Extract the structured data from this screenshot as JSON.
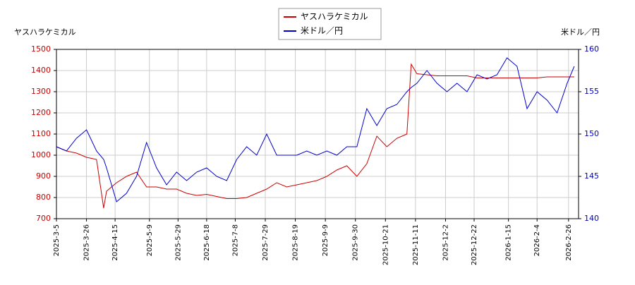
{
  "chart_data": {
    "type": "line",
    "y_label": "ヤスハラケミカル",
    "y2_label": "米ドル／円",
    "x": [
      "2025-3-5",
      "2025-3-12",
      "2025-3-19",
      "2025-3-26",
      "2025-4-2",
      "2025-4-7",
      "2025-4-9",
      "2025-4-16",
      "2025-4-23",
      "2025-4-30",
      "2025-5-7",
      "2025-5-14",
      "2025-5-21",
      "2025-5-28",
      "2025-6-4",
      "2025-6-11",
      "2025-6-18",
      "2025-6-25",
      "2025-7-2",
      "2025-7-9",
      "2025-7-16",
      "2025-7-23",
      "2025-7-30",
      "2025-8-6",
      "2025-8-13",
      "2025-8-20",
      "2025-8-27",
      "2025-9-3",
      "2025-9-10",
      "2025-9-17",
      "2025-9-24",
      "2025-10-1",
      "2025-10-8",
      "2025-10-15",
      "2025-10-22",
      "2025-10-29",
      "2025-11-5",
      "2025-11-8",
      "2025-11-12",
      "2025-11-19",
      "2025-11-26",
      "2025-12-3",
      "2025-12-10",
      "2025-12-17",
      "2025-12-24",
      "2025-12-31",
      "2026-1-7",
      "2026-1-14",
      "2026-1-21",
      "2026-1-28",
      "2026-2-4",
      "2026-2-11",
      "2026-2-18",
      "2026-2-25",
      "2026-3-2"
    ],
    "series": [
      {
        "name": "ヤスハラケミカル",
        "color": "#cc0000",
        "values": [
          1040,
          1020,
          1010,
          990,
          980,
          750,
          830,
          870,
          900,
          920,
          850,
          850,
          840,
          840,
          820,
          810,
          815,
          805,
          795,
          795,
          800,
          820,
          840,
          870,
          850,
          860,
          870,
          880,
          900,
          930,
          950,
          900,
          960,
          1090,
          1040,
          1080,
          1100,
          1430,
          1385,
          1380,
          1375,
          1375,
          1375,
          1375,
          1365,
          1365,
          1365,
          1365,
          1365,
          1365,
          1365,
          1370,
          1370,
          1370,
          1370
        ]
      },
      {
        "name": "米ドル／円",
        "color": "#0000cc",
        "axis": "y2",
        "values": [
          148.5,
          148,
          149.5,
          150.5,
          148,
          147,
          146,
          142,
          143,
          145,
          149,
          146,
          144,
          145.5,
          144.5,
          145.5,
          146,
          145,
          144.5,
          147,
          148.5,
          147.5,
          150,
          147.5,
          147.5,
          147.5,
          148,
          147.5,
          148,
          147.5,
          148.5,
          148.5,
          153,
          151,
          153,
          153.5,
          155,
          155.5,
          156,
          157.5,
          156,
          155,
          156,
          155,
          157,
          156.5,
          157,
          159,
          158,
          153,
          155,
          154,
          152.5,
          156,
          158
        ]
      }
    ],
    "xlim": [
      "2025-3-5",
      "2026-3-5"
    ],
    "xticks": [
      "2025-3-5",
      "2025-3-26",
      "2025-4-15",
      "2025-5-9",
      "2025-5-29",
      "2025-6-18",
      "2025-7-8",
      "2025-7-29",
      "2025-8-19",
      "2025-9-9",
      "2025-9-30",
      "2025-10-21",
      "2025-11-11",
      "2025-12-2",
      "2025-12-22",
      "2026-1-15",
      "2026-2-4",
      "2026-2-26"
    ],
    "ylim": [
      700,
      1500
    ],
    "yticks": [
      700,
      800,
      900,
      1000,
      1100,
      1200,
      1300,
      1400,
      1500
    ],
    "y2lim": [
      140,
      160
    ],
    "y2ticks": [
      140,
      145,
      150,
      155,
      160
    ],
    "grid": true,
    "legend": "top"
  }
}
